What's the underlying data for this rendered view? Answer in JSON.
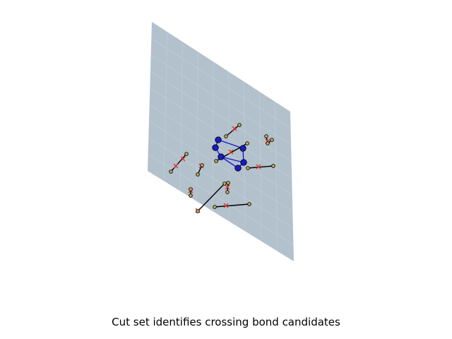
{
  "caption": "Cut set identifies crossing bond candidates",
  "colors": {
    "plane": "#b2c1cc",
    "plane_grid": "#c3d0d8",
    "ring_atom": "#1a1acc",
    "ring_bond": "#1a1acc",
    "atom_other": "#c8b45a",
    "bond": "#000000",
    "cut_marker": "#e03030",
    "outline": "#000000"
  },
  "icons": {
    "cut_marker": "x-cross-icon",
    "ring_atom": "circle-icon",
    "atom": "circle-icon"
  }
}
